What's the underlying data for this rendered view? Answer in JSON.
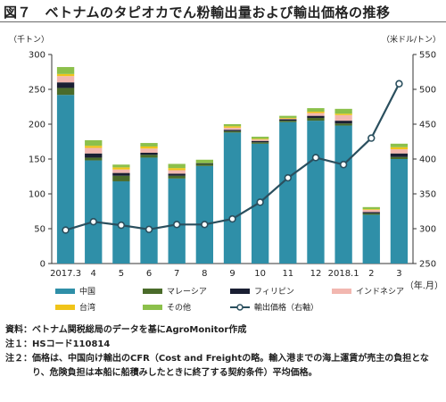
{
  "title": "図７　ベトナムのタピオカでん粉輸出量および輸出価格の推移",
  "left_unit": "（千トン）",
  "right_unit": "（米ドル/トン）",
  "x_unit": "（年.月）",
  "chart_data": {
    "type": "bar",
    "stacked": true,
    "categories": [
      "2017.3",
      "4",
      "5",
      "6",
      "7",
      "8",
      "9",
      "10",
      "11",
      "12",
      "2018.1",
      "2",
      "3"
    ],
    "series": [
      {
        "name": "中国",
        "color": "#2f8fa8",
        "values": [
          242,
          148,
          118,
          152,
          122,
          140,
          188,
          172,
          203,
          205,
          198,
          70,
          150
        ]
      },
      {
        "name": "マレーシア",
        "color": "#4a6b2a",
        "values": [
          10,
          4,
          8,
          4,
          4,
          3,
          2,
          2,
          2,
          4,
          3,
          2,
          3
        ]
      },
      {
        "name": "フィリピン",
        "color": "#1a1f33",
        "values": [
          8,
          6,
          4,
          3,
          3,
          1,
          2,
          2,
          2,
          3,
          4,
          2,
          5
        ]
      },
      {
        "name": "インドネシア",
        "color": "#f2b7b0",
        "values": [
          9,
          8,
          5,
          6,
          5,
          0,
          3,
          2,
          1,
          4,
          8,
          3,
          6
        ]
      },
      {
        "name": "台湾",
        "color": "#f0c419",
        "values": [
          3,
          3,
          3,
          3,
          3,
          0,
          2,
          1,
          1,
          2,
          2,
          1,
          3
        ]
      },
      {
        "name": "その他",
        "color": "#8cc04b",
        "values": [
          10,
          8,
          4,
          5,
          6,
          5,
          3,
          3,
          3,
          5,
          7,
          3,
          5
        ]
      }
    ],
    "line": {
      "name": "輸出価格（右軸）",
      "color": "#2a4f5e",
      "values": [
        298,
        310,
        305,
        299,
        306,
        306,
        314,
        338,
        373,
        402,
        392,
        430,
        508
      ]
    },
    "yleft": {
      "min": 0,
      "max": 300,
      "ticks": [
        0,
        50,
        100,
        150,
        200,
        250,
        300
      ]
    },
    "yright": {
      "min": 250,
      "max": 550,
      "ticks": [
        250,
        300,
        350,
        400,
        450,
        500,
        550
      ]
    },
    "grid": false,
    "legend": "bottom"
  },
  "notes": [
    {
      "label": "資料：",
      "text": "ベトナム関税総局のデータを基にAgroMonitor作成"
    },
    {
      "label": "注１：",
      "text": "HSコード110814"
    },
    {
      "label": "注２：",
      "text": "価格は、中国向け輸出のCFR（Cost and Freightの略。輸入港までの海上運賃が売主の負担となり、危険負担は本船に船積みしたときに終了する契約条件）平均価格。"
    }
  ]
}
